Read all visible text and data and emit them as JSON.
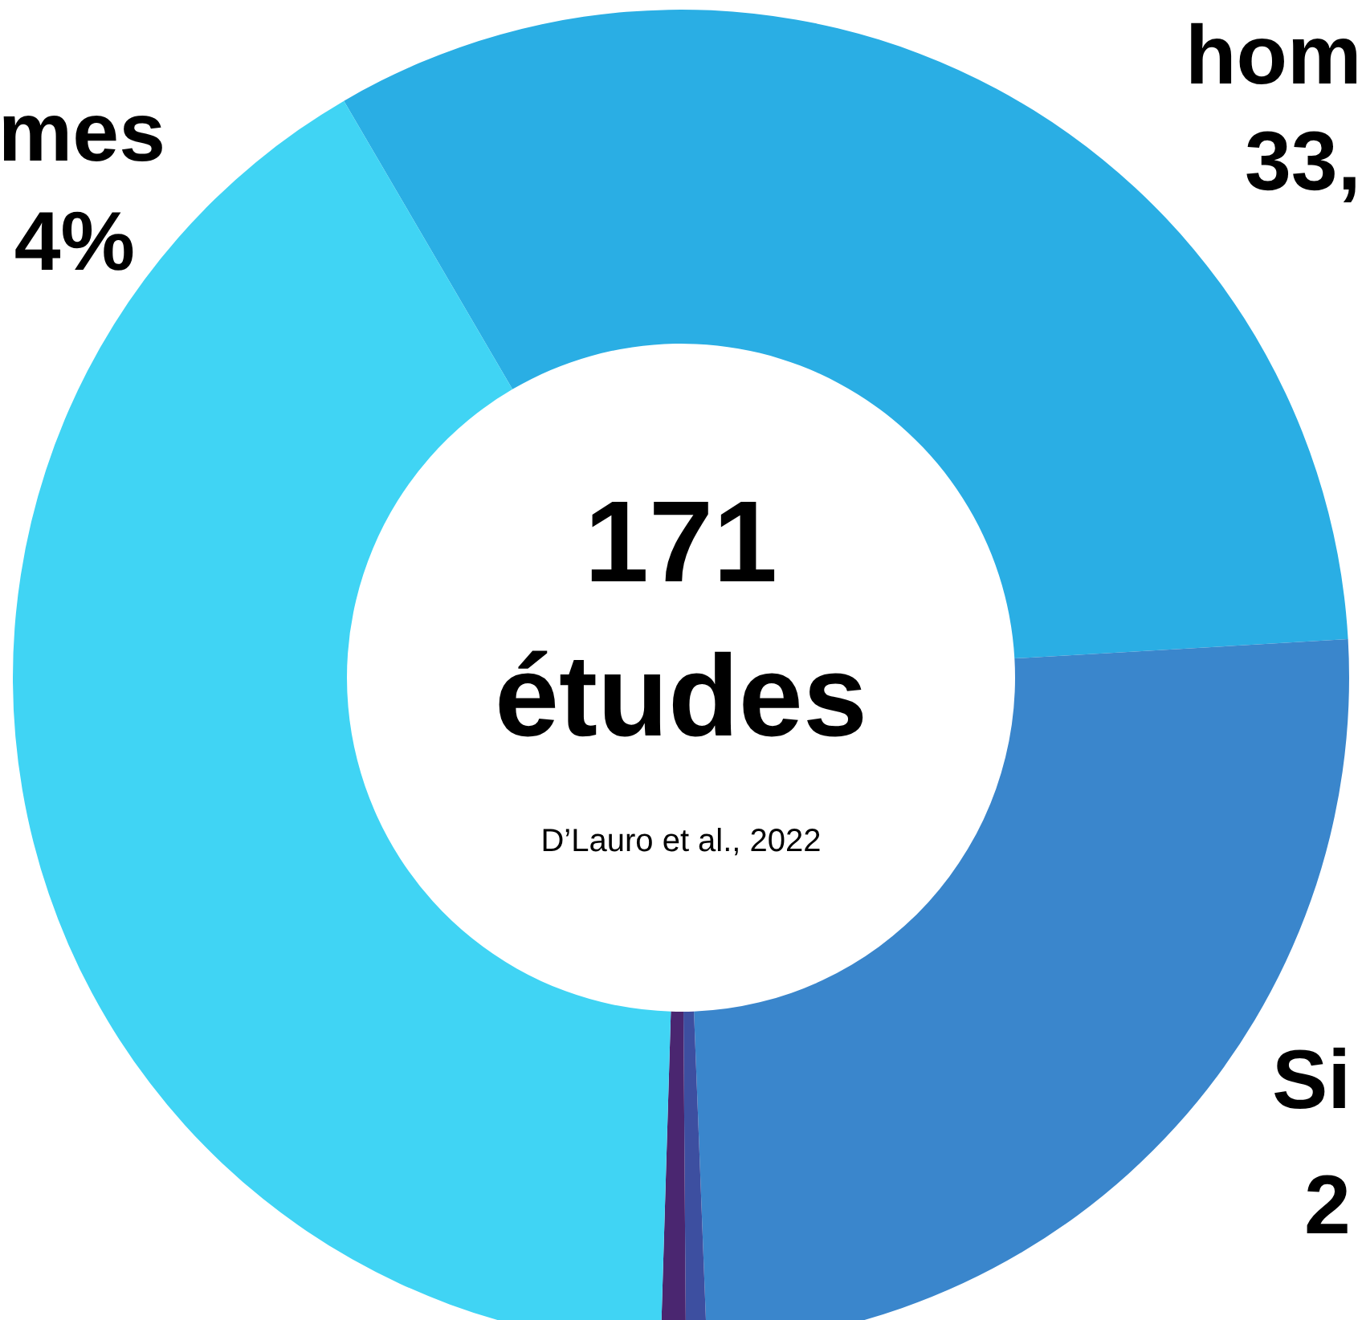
{
  "chart_data": {
    "type": "donut",
    "title": "171",
    "subtitle": "études",
    "annotations": [
      "D’Lauro et al., 2022",
      "33,",
      "2",
      "4%"
    ],
    "categories": [
      "hom",
      "Si",
      null,
      null,
      "mes"
    ],
    "values": [
      32.5,
      25.3,
      0.5,
      0.6,
      41.1
    ],
    "colors": [
      "#2aaee4",
      "#3a86cc",
      "#3d4fa0",
      "#4a2670",
      "#40d4f4"
    ]
  }
}
